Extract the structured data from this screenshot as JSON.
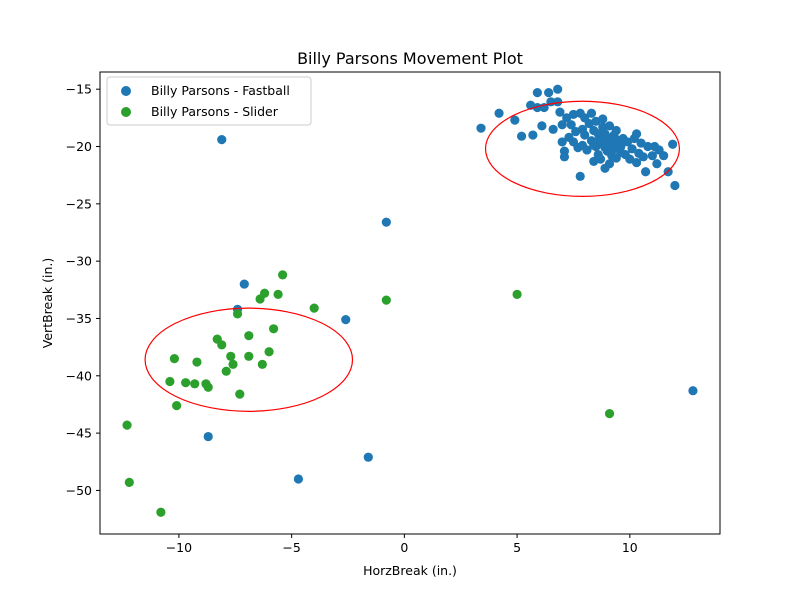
{
  "chart_data": {
    "type": "scatter",
    "title": "Billy Parsons Movement Plot",
    "xlabel": "HorzBreak (in.)",
    "ylabel": "VertBreak (in.)",
    "xlim": [
      -13.5,
      14.0
    ],
    "ylim": [
      -53.8,
      -13.5
    ],
    "xticks": [
      -10,
      -5,
      0,
      5,
      10
    ],
    "yticks": [
      -15,
      -20,
      -25,
      -30,
      -35,
      -40,
      -45,
      -50
    ],
    "grid": false,
    "legend_position": "top-left",
    "series": [
      {
        "name": "Billy Parsons - Fastball",
        "color": "#1f77b4",
        "points": [
          [
            -8.1,
            -19.4
          ],
          [
            -0.8,
            -26.6
          ],
          [
            -7.1,
            -32.0
          ],
          [
            -7.4,
            -34.2
          ],
          [
            -2.6,
            -35.1
          ],
          [
            -8.7,
            -45.3
          ],
          [
            -1.6,
            -47.1
          ],
          [
            -4.7,
            -49.0
          ],
          [
            12.8,
            -41.3
          ],
          [
            3.4,
            -18.4
          ],
          [
            4.2,
            -17.1
          ],
          [
            4.9,
            -17.7
          ],
          [
            5.2,
            -19.1
          ],
          [
            5.6,
            -16.4
          ],
          [
            5.7,
            -19.0
          ],
          [
            5.9,
            -16.6
          ],
          [
            5.9,
            -15.3
          ],
          [
            6.1,
            -18.2
          ],
          [
            6.2,
            -16.6
          ],
          [
            6.4,
            -15.3
          ],
          [
            6.5,
            -16.1
          ],
          [
            6.6,
            -18.5
          ],
          [
            6.8,
            -16.1
          ],
          [
            6.8,
            -15.0
          ],
          [
            6.9,
            -17.0
          ],
          [
            7.0,
            -18.1
          ],
          [
            7.0,
            -19.6
          ],
          [
            7.1,
            -20.4
          ],
          [
            7.1,
            -20.9
          ],
          [
            7.2,
            -17.5
          ],
          [
            7.3,
            -19.2
          ],
          [
            7.4,
            -18.1
          ],
          [
            7.5,
            -17.2
          ],
          [
            7.5,
            -19.6
          ],
          [
            7.6,
            -18.7
          ],
          [
            7.7,
            -20.1
          ],
          [
            7.8,
            -17.1
          ],
          [
            7.8,
            -22.6
          ],
          [
            7.9,
            -18.5
          ],
          [
            7.9,
            -19.9
          ],
          [
            8.0,
            -17.5
          ],
          [
            8.0,
            -19.0
          ],
          [
            8.1,
            -20.3
          ],
          [
            8.2,
            -18.0
          ],
          [
            8.3,
            -17.1
          ],
          [
            8.3,
            -19.5
          ],
          [
            8.4,
            -18.6
          ],
          [
            8.4,
            -21.3
          ],
          [
            8.5,
            -17.8
          ],
          [
            8.5,
            -20.0
          ],
          [
            8.6,
            -18.9
          ],
          [
            8.6,
            -20.7
          ],
          [
            8.7,
            -19.3
          ],
          [
            8.7,
            -21.1
          ],
          [
            8.8,
            -17.6
          ],
          [
            8.8,
            -18.3
          ],
          [
            8.8,
            -19.8
          ],
          [
            8.9,
            -18.9
          ],
          [
            8.9,
            -21.9
          ],
          [
            9.0,
            -19.2
          ],
          [
            9.0,
            -20.4
          ],
          [
            9.1,
            -18.2
          ],
          [
            9.1,
            -21.5
          ],
          [
            9.2,
            -19.6
          ],
          [
            9.2,
            -20.8
          ],
          [
            9.3,
            -19.0
          ],
          [
            9.3,
            -20.2
          ],
          [
            9.4,
            -18.6
          ],
          [
            9.4,
            -21.0
          ],
          [
            9.5,
            -19.8
          ],
          [
            9.6,
            -20.5
          ],
          [
            9.7,
            -19.3
          ],
          [
            9.8,
            -20.7
          ],
          [
            9.9,
            -19.6
          ],
          [
            10.0,
            -21.1
          ],
          [
            10.1,
            -20.2
          ],
          [
            10.2,
            -19.3
          ],
          [
            10.3,
            -18.9
          ],
          [
            10.3,
            -21.4
          ],
          [
            10.4,
            -20.6
          ],
          [
            10.5,
            -19.7
          ],
          [
            10.6,
            -20.9
          ],
          [
            10.7,
            -22.2
          ],
          [
            10.8,
            -20.0
          ],
          [
            11.0,
            -20.8
          ],
          [
            11.1,
            -20.0
          ],
          [
            11.2,
            -21.5
          ],
          [
            11.3,
            -20.3
          ],
          [
            11.5,
            -20.8
          ],
          [
            11.7,
            -22.2
          ],
          [
            11.9,
            -19.8
          ],
          [
            12.0,
            -23.4
          ],
          [
            9.0,
            -19.7
          ],
          [
            8.6,
            -19.5
          ],
          [
            9.2,
            -19.9
          ],
          [
            8.9,
            -20.1
          ],
          [
            9.4,
            -19.4
          ],
          [
            8.4,
            -19.9
          ],
          [
            9.6,
            -20.0
          ]
        ]
      },
      {
        "name": "Billy Parsons - Slider",
        "color": "#2ca02c",
        "points": [
          [
            -5.4,
            -31.2
          ],
          [
            -6.2,
            -32.8
          ],
          [
            -6.4,
            -33.3
          ],
          [
            -5.6,
            -32.9
          ],
          [
            -4.0,
            -34.1
          ],
          [
            -0.8,
            -33.4
          ],
          [
            -7.4,
            -34.6
          ],
          [
            -5.8,
            -35.9
          ],
          [
            -8.3,
            -36.8
          ],
          [
            -8.1,
            -37.3
          ],
          [
            -6.9,
            -36.5
          ],
          [
            -10.2,
            -38.5
          ],
          [
            -9.2,
            -38.8
          ],
          [
            -7.7,
            -38.3
          ],
          [
            -6.9,
            -38.3
          ],
          [
            -6.0,
            -37.9
          ],
          [
            -7.6,
            -39.0
          ],
          [
            -6.3,
            -39.0
          ],
          [
            -7.9,
            -39.6
          ],
          [
            -10.4,
            -40.5
          ],
          [
            -9.7,
            -40.6
          ],
          [
            -9.3,
            -40.7
          ],
          [
            -8.8,
            -40.7
          ],
          [
            -8.7,
            -41.0
          ],
          [
            -7.3,
            -41.6
          ],
          [
            -10.1,
            -42.6
          ],
          [
            5.0,
            -32.9
          ],
          [
            9.1,
            -43.3
          ],
          [
            -12.3,
            -44.3
          ],
          [
            -12.2,
            -49.3
          ],
          [
            -10.8,
            -51.9
          ]
        ]
      }
    ],
    "ellipses": [
      {
        "color": "#ff0000",
        "center": [
          7.9,
          -20.2
        ],
        "width": 8.6,
        "height": 8.3
      },
      {
        "color": "#ff0000",
        "center": [
          -6.9,
          -38.6
        ],
        "width": 9.2,
        "height": 9.0
      }
    ]
  }
}
